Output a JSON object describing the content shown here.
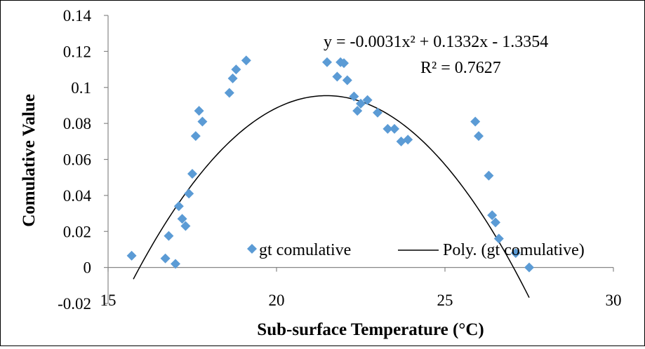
{
  "chart_data": {
    "type": "scatter",
    "xlabel": "Sub-surface Temperature (°C)",
    "ylabel": "Comulative Value",
    "xlim": [
      15,
      30
    ],
    "ylim": [
      -0.02,
      0.14
    ],
    "x_ticks": [
      "15",
      "20",
      "25",
      "30"
    ],
    "y_ticks": [
      "-0.02",
      "0",
      "0.02",
      "0.04",
      "0.06",
      "0.08",
      "0.1",
      "0.12",
      "0.14"
    ],
    "grid": false,
    "legend_position": "bottom-right",
    "series": [
      {
        "name": "gt comulative",
        "color": "#5b9bd5",
        "marker": "diamond",
        "points": [
          [
            15.7,
            0.0065
          ],
          [
            16.7,
            0.005
          ],
          [
            16.8,
            0.0175
          ],
          [
            17.0,
            0.002
          ],
          [
            17.1,
            0.034
          ],
          [
            17.2,
            0.027
          ],
          [
            17.3,
            0.023
          ],
          [
            17.4,
            0.041
          ],
          [
            17.5,
            0.052
          ],
          [
            17.6,
            0.073
          ],
          [
            17.7,
            0.087
          ],
          [
            17.8,
            0.081
          ],
          [
            18.6,
            0.097
          ],
          [
            18.7,
            0.105
          ],
          [
            18.8,
            0.11
          ],
          [
            19.1,
            0.115
          ],
          [
            21.5,
            0.114
          ],
          [
            21.8,
            0.106
          ],
          [
            21.9,
            0.114
          ],
          [
            22.0,
            0.1135
          ],
          [
            22.1,
            0.104
          ],
          [
            22.3,
            0.095
          ],
          [
            22.4,
            0.087
          ],
          [
            22.5,
            0.091
          ],
          [
            22.7,
            0.093
          ],
          [
            23.0,
            0.086
          ],
          [
            23.3,
            0.077
          ],
          [
            23.5,
            0.077
          ],
          [
            23.7,
            0.07
          ],
          [
            23.9,
            0.071
          ],
          [
            25.9,
            0.081
          ],
          [
            26.0,
            0.073
          ],
          [
            26.3,
            0.051
          ],
          [
            26.4,
            0.029
          ],
          [
            26.5,
            0.025
          ],
          [
            26.6,
            0.016
          ],
          [
            27.1,
            0.008
          ],
          [
            27.5,
            0.0
          ]
        ]
      },
      {
        "name": "Poly. (gt comulative)",
        "type": "trendline",
        "color": "#000000",
        "polynomial": {
          "a": -0.0031,
          "b": 0.1332,
          "c": -1.3354
        },
        "x_range": [
          15.75,
          27.5
        ]
      }
    ],
    "annotations": {
      "equation": "y = -0.0031x² + 0.1332x - 1.3354",
      "r_squared": "R² = 0.7627"
    }
  }
}
